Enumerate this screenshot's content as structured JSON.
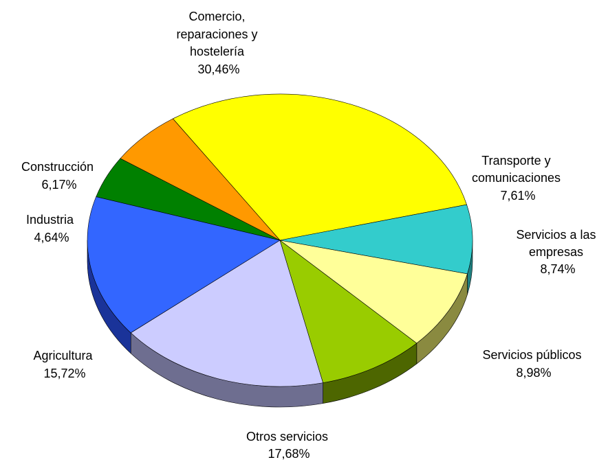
{
  "chart_data": {
    "type": "pie",
    "title": "",
    "slices": [
      {
        "label_lines": [
          "Comercio,",
          "reparaciones y",
          "hostelería"
        ],
        "value_text": "30,46%",
        "value": 30.46,
        "color": "#ffff00",
        "side_color": "#a8a800"
      },
      {
        "label_lines": [
          "Transporte y",
          "comunicaciones"
        ],
        "value_text": "7,61%",
        "value": 7.61,
        "color": "#33cccc",
        "side_color": "#1f8080"
      },
      {
        "label_lines": [
          "Servicios a las",
          "empresas"
        ],
        "value_text": "8,74%",
        "value": 8.74,
        "color": "#ffff99",
        "side_color": "#8a8a40"
      },
      {
        "label_lines": [
          "Servicios públicos"
        ],
        "value_text": "8,98%",
        "value": 8.98,
        "color": "#99cc00",
        "side_color": "#4d6600"
      },
      {
        "label_lines": [
          "Otros servicios"
        ],
        "value_text": "17,68%",
        "value": 17.68,
        "color": "#ccccff",
        "side_color": "#6e6e90"
      },
      {
        "label_lines": [
          "Agricultura"
        ],
        "value_text": "15,72%",
        "value": 15.72,
        "color": "#3366ff",
        "side_color": "#1a3399"
      },
      {
        "label_lines": [
          "Industria"
        ],
        "value_text": "4,64%",
        "value": 4.64,
        "color": "#008000",
        "side_color": "#004000"
      },
      {
        "label_lines": [
          "Construcción"
        ],
        "value_text": "6,17%",
        "value": 6.17,
        "color": "#ff9900",
        "side_color": "#995c00"
      }
    ]
  }
}
